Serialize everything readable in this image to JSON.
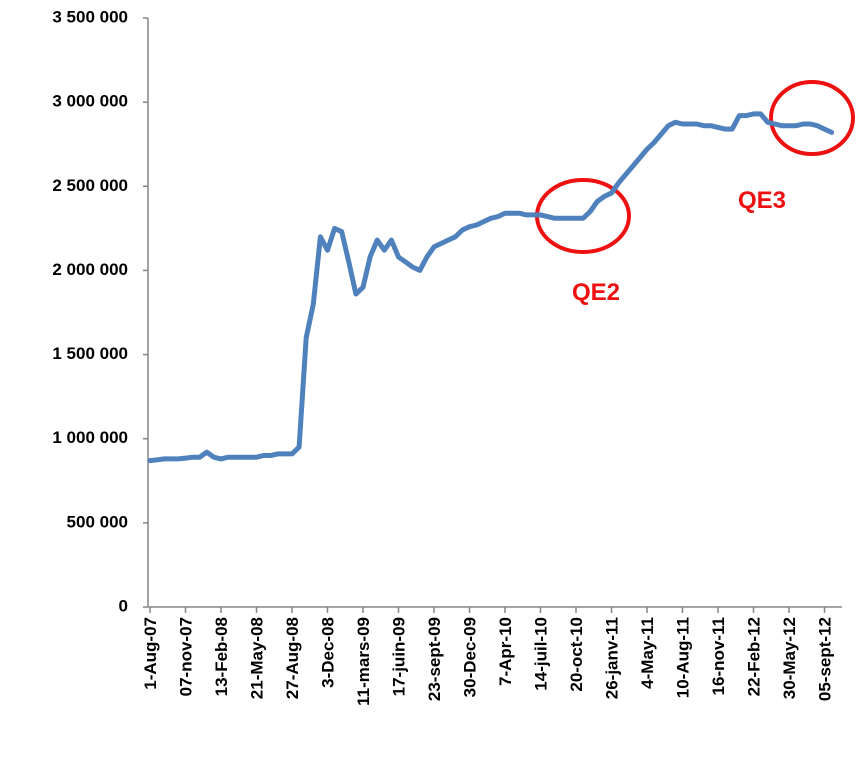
{
  "chart_data": {
    "type": "line",
    "categories": [
      "1-Aug-07",
      null,
      null,
      null,
      null,
      "07-nov-07",
      null,
      null,
      null,
      null,
      "13-Feb-08",
      null,
      null,
      null,
      null,
      "21-May-08",
      null,
      null,
      null,
      null,
      "27-Aug-08",
      null,
      null,
      null,
      null,
      "3-Dec-08",
      null,
      null,
      null,
      null,
      "11-mars-09",
      null,
      null,
      null,
      null,
      "17-juin-09",
      null,
      null,
      null,
      null,
      "23-sept-09",
      null,
      null,
      null,
      null,
      "30-Dec-09",
      null,
      null,
      null,
      null,
      "7-Apr-10",
      null,
      null,
      null,
      null,
      "14-juil-10",
      null,
      null,
      null,
      null,
      "20-oct-10",
      null,
      null,
      null,
      null,
      "26-janv-11",
      null,
      null,
      null,
      null,
      "4-May-11",
      null,
      null,
      null,
      null,
      "10-Aug-11",
      null,
      null,
      null,
      null,
      "16-nov-11",
      null,
      null,
      null,
      null,
      "22-Feb-12",
      null,
      null,
      null,
      null,
      "30-May-12",
      null,
      null,
      null,
      null,
      "05-sept-12",
      null
    ],
    "values": [
      870000,
      875000,
      880000,
      880000,
      880000,
      885000,
      890000,
      890000,
      920000,
      890000,
      880000,
      890000,
      890000,
      890000,
      890000,
      890000,
      900000,
      900000,
      910000,
      910000,
      910000,
      950000,
      1600000,
      1800000,
      2200000,
      2120000,
      2250000,
      2230000,
      2050000,
      1860000,
      1900000,
      2080000,
      2180000,
      2120000,
      2180000,
      2080000,
      2050000,
      2020000,
      2000000,
      2080000,
      2140000,
      2160000,
      2180000,
      2200000,
      2240000,
      2260000,
      2270000,
      2290000,
      2310000,
      2320000,
      2340000,
      2340000,
      2340000,
      2330000,
      2330000,
      2330000,
      2320000,
      2310000,
      2310000,
      2310000,
      2310000,
      2310000,
      2350000,
      2410000,
      2440000,
      2460000,
      2520000,
      2570000,
      2620000,
      2670000,
      2720000,
      2760000,
      2810000,
      2860000,
      2880000,
      2870000,
      2870000,
      2870000,
      2860000,
      2860000,
      2850000,
      2840000,
      2840000,
      2920000,
      2920000,
      2930000,
      2930000,
      2880000,
      2870000,
      2860000,
      2860000,
      2860000,
      2870000,
      2870000,
      2860000,
      2840000,
      2820000
    ],
    "color": "#4f81bd",
    "ylim": [
      0,
      3500000
    ],
    "yticks": [
      0,
      {
        "value": 500000,
        "label": "500 000"
      },
      {
        "value": 1000000,
        "label": "1 000 000"
      },
      {
        "value": 1500000,
        "label": "1 500 000"
      },
      {
        "value": 2000000,
        "label": "2 000 000"
      },
      {
        "value": 2500000,
        "label": "2 500 000"
      },
      {
        "value": 3000000,
        "label": "3 000 000"
      },
      {
        "value": 3500000,
        "label": "3 500 000"
      }
    ],
    "grid": false,
    "annotations": [
      "QE2",
      "QE3"
    ]
  }
}
